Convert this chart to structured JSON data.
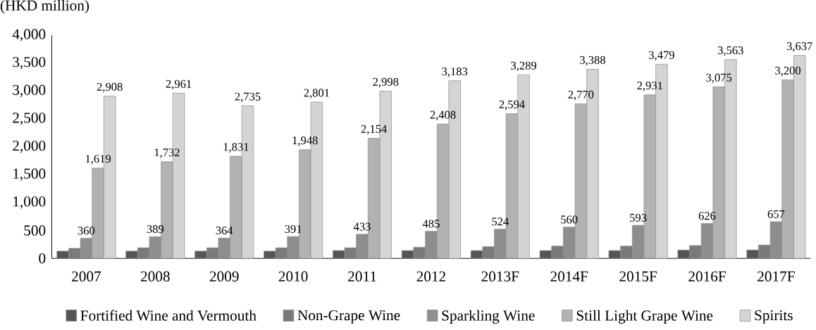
{
  "chart_data": {
    "type": "bar",
    "ylabel": "(HKD million)",
    "categories": [
      "2007",
      "2008",
      "2009",
      "2010",
      "2011",
      "2012",
      "2013F",
      "2014F",
      "2015F",
      "2016F",
      "2017F"
    ],
    "ylim": [
      0,
      4000
    ],
    "yticks": [
      0,
      500,
      {
        "value": 1000,
        "label": "1,000"
      },
      {
        "value": 1500,
        "label": "1,500"
      },
      {
        "value": 2000,
        "label": "2,000"
      },
      {
        "value": 2500,
        "label": "2,500"
      },
      {
        "value": 3000,
        "label": "3,000"
      },
      {
        "value": 3500,
        "label": "3,500"
      },
      {
        "value": 4000,
        "label": "4,000"
      }
    ],
    "legend": "bottom",
    "grid": false,
    "series": [
      {
        "name": "Fortified Wine and Vermouth",
        "color": "#555555",
        "values": [
          130,
          130,
          130,
          130,
          140,
          140,
          140,
          140,
          140,
          150,
          150
        ]
      },
      {
        "name": "Non-Grape Wine",
        "color": "#7a7a7a",
        "values": [
          180,
          190,
          190,
          190,
          190,
          200,
          210,
          220,
          220,
          230,
          240
        ]
      },
      {
        "name": "Sparkling Wine",
        "color": "#8e8e8e",
        "values": [
          360,
          389,
          364,
          391,
          433,
          485,
          524,
          560,
          593,
          626,
          657
        ],
        "value_labels": [
          "360",
          "389",
          "364",
          "391",
          "433",
          "485",
          "524",
          "560",
          "593",
          "626",
          "657"
        ]
      },
      {
        "name": "Still Light Grape Wine",
        "color": "#b2b2b2",
        "values": [
          1619,
          1732,
          1831,
          1948,
          2154,
          2408,
          2594,
          2770,
          2931,
          3075,
          3200
        ],
        "value_labels": [
          "1,619",
          "1,732",
          "1,831",
          "1,948",
          "2,154",
          "2,408",
          "2,594",
          "2,770",
          "2,931",
          "3,075",
          "3,200"
        ]
      },
      {
        "name": "Spirits",
        "color": "#d4d4d4",
        "values": [
          2908,
          2961,
          2735,
          2801,
          2998,
          3183,
          3289,
          3388,
          3479,
          3563,
          3637
        ],
        "value_labels": [
          "2,908",
          "2,961",
          "2,735",
          "2,801",
          "2,998",
          "3,183",
          "3,289",
          "3,388",
          "3,479",
          "3,563",
          "3,637"
        ]
      }
    ]
  }
}
